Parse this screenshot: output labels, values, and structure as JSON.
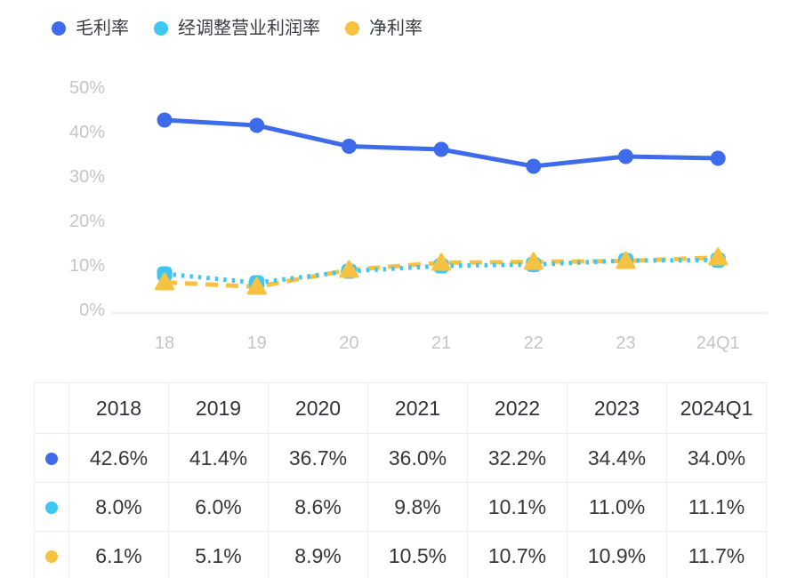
{
  "colors": {
    "series_blue": "#3e6bea",
    "series_cyan": "#3fc7f3",
    "series_yellow": "#f8c241",
    "axis_label": "#c3c5c9",
    "axis_line": "#ebecee",
    "table_border": "#edeef2",
    "text_dark": "#34373c"
  },
  "chart_data": {
    "type": "line",
    "title": "",
    "categories": [
      "18",
      "19",
      "20",
      "21",
      "22",
      "23",
      "24Q1"
    ],
    "series": [
      {
        "name": "毛利率",
        "color": "#3e6bea",
        "line_style": "solid",
        "marker": "circle",
        "values": [
          42.6,
          41.4,
          36.7,
          36.0,
          32.2,
          34.4,
          34.0
        ]
      },
      {
        "name": "经调整营业利润率",
        "color": "#3fc7f3",
        "line_style": "dotted",
        "marker": "rounded-square",
        "values": [
          8.0,
          6.0,
          8.6,
          9.8,
          10.1,
          11.0,
          11.1
        ]
      },
      {
        "name": "净利率",
        "color": "#f8c241",
        "line_style": "dashed",
        "marker": "triangle",
        "values": [
          6.1,
          5.1,
          8.9,
          10.5,
          10.7,
          10.9,
          11.7
        ]
      }
    ],
    "ylim": [
      0,
      50
    ],
    "y_ticks": [
      "0%",
      "10%",
      "20%",
      "30%",
      "40%",
      "50%"
    ],
    "xlabel": "",
    "ylabel": "",
    "grid": false,
    "legend_position": "top-left",
    "unit": "%"
  },
  "table": {
    "headers": [
      "",
      "2018",
      "2019",
      "2020",
      "2021",
      "2022",
      "2023",
      "2024Q1"
    ],
    "rows": [
      {
        "series": "毛利率",
        "color": "#3e6bea",
        "values": [
          "42.6%",
          "41.4%",
          "36.7%",
          "36.0%",
          "32.2%",
          "34.4%",
          "34.0%"
        ]
      },
      {
        "series": "经调整营业利润率",
        "color": "#3fc7f3",
        "values": [
          "8.0%",
          "6.0%",
          "8.6%",
          "9.8%",
          "10.1%",
          "11.0%",
          "11.1%"
        ]
      },
      {
        "series": "净利率",
        "color": "#f8c241",
        "values": [
          "6.1%",
          "5.1%",
          "8.9%",
          "10.5%",
          "10.7%",
          "10.9%",
          "11.7%"
        ]
      }
    ]
  }
}
